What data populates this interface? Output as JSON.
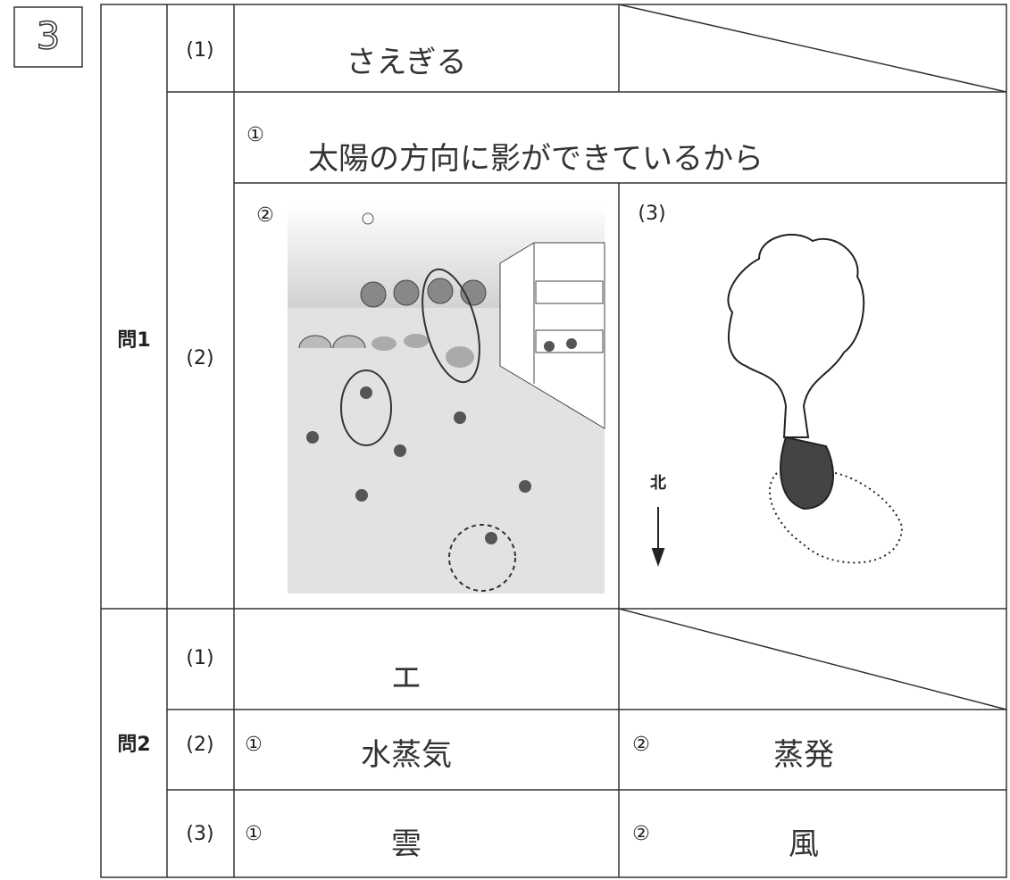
{
  "section": "3",
  "q1": {
    "label": "問1",
    "p1": {
      "label": "(1)",
      "answer": "さえぎる"
    },
    "p2": {
      "label": "(2)",
      "item1": {
        "marker": "①",
        "answer": "太陽の方向に影ができているから"
      },
      "item2": {
        "marker": "②"
      }
    },
    "p3": {
      "label": "(3)",
      "compass": "北"
    }
  },
  "q2": {
    "label": "問2",
    "p1": {
      "label": "(1)",
      "answer": "エ"
    },
    "p2": {
      "label": "(2)",
      "item1": {
        "marker": "①",
        "answer": "水蒸気"
      },
      "item2": {
        "marker": "②",
        "answer": "蒸発"
      }
    },
    "p3": {
      "label": "(3)",
      "item1": {
        "marker": "①",
        "answer": "雲"
      },
      "item2": {
        "marker": "②",
        "answer": "風"
      }
    }
  }
}
